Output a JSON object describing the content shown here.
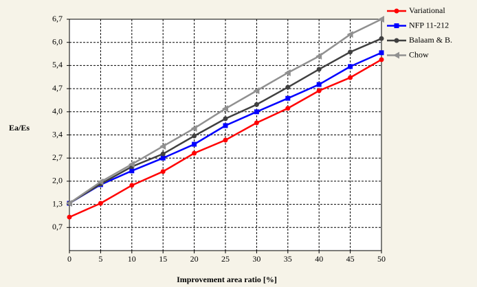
{
  "chart_data": {
    "type": "line",
    "x_label": "Improvement area ratio [%]",
    "y_label": "Ea/Es",
    "x": [
      0,
      5,
      10,
      15,
      20,
      25,
      30,
      35,
      40,
      45,
      50
    ],
    "xlim": [
      0,
      50
    ],
    "xticks": [
      0,
      5,
      10,
      15,
      20,
      25,
      30,
      35,
      40,
      45,
      50
    ],
    "ylim": [
      0,
      6.7
    ],
    "yticks": [
      {
        "value": 0.67,
        "label": "0,7"
      },
      {
        "value": 1.34,
        "label": "1,3"
      },
      {
        "value": 2.01,
        "label": "2,0"
      },
      {
        "value": 2.68,
        "label": "2,7"
      },
      {
        "value": 3.35,
        "label": "3,4"
      },
      {
        "value": 4.02,
        "label": "4,0"
      },
      {
        "value": 4.69,
        "label": "4,7"
      },
      {
        "value": 5.36,
        "label": "5,4"
      },
      {
        "value": 6.03,
        "label": "6,0"
      },
      {
        "value": 6.7,
        "label": "6,7"
      }
    ],
    "grid": true,
    "legend": "top-right",
    "series": [
      {
        "name": "Variational",
        "color": "#ff0000",
        "marker": "circle",
        "values": [
          0.97,
          1.37,
          1.89,
          2.29,
          2.82,
          3.2,
          3.7,
          4.12,
          4.63,
          5.01,
          5.53
        ]
      },
      {
        "name": "NFP 11-212",
        "color": "#0000ff",
        "marker": "square",
        "values": [
          1.37,
          1.91,
          2.31,
          2.68,
          3.08,
          3.62,
          4.02,
          4.41,
          4.81,
          5.33,
          5.73
        ]
      },
      {
        "name": "Balaam & B.",
        "color": "#404040",
        "marker": "circle",
        "values": [
          1.37,
          1.93,
          2.43,
          2.8,
          3.32,
          3.82,
          4.23,
          4.73,
          5.25,
          5.75,
          6.14
        ]
      },
      {
        "name": "Chow",
        "color": "#909090",
        "marker": "triangle",
        "values": [
          1.37,
          1.99,
          2.5,
          3.02,
          3.54,
          4.11,
          4.63,
          5.15,
          5.63,
          6.26,
          6.7
        ]
      }
    ]
  }
}
